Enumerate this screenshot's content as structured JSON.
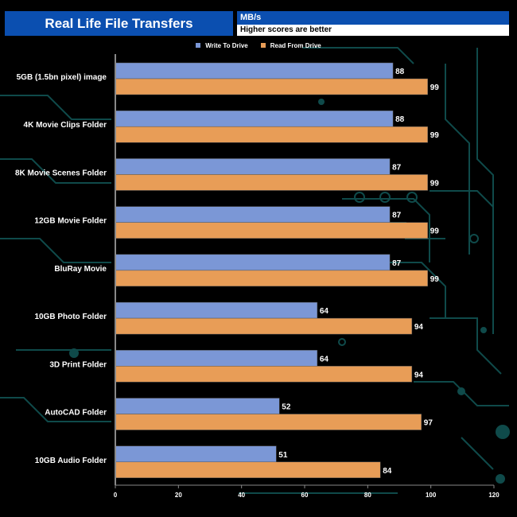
{
  "header": {
    "title": "Real Life File Transfers",
    "unit": "MB/s",
    "note": "Higher scores are better"
  },
  "colors": {
    "write": "#7b97d6",
    "read": "#e89d57",
    "title_bg": "#0b4fb0",
    "circuit": "#0f4a4a"
  },
  "chart_data": {
    "type": "bar",
    "orientation": "horizontal",
    "title": "Real Life File Transfers",
    "xlabel": "MB/s",
    "xlim": [
      0,
      120
    ],
    "xticks": [
      0,
      20,
      40,
      60,
      80,
      100,
      120
    ],
    "grid": false,
    "legend_position": "top-center",
    "categories": [
      "5GB (1.5bn pixel) image",
      "4K Movie Clips Folder",
      "8K Movie Scenes Folder",
      "12GB Movie Folder",
      "BluRay Movie",
      "10GB Photo Folder",
      "3D Print Folder",
      "AutoCAD Folder",
      "10GB Audio Folder"
    ],
    "series": [
      {
        "name": "Write To  Drive",
        "values": [
          88,
          88,
          87,
          87,
          87,
          64,
          64,
          52,
          51
        ]
      },
      {
        "name": "Read From  Drive",
        "values": [
          99,
          99,
          99,
          99,
          99,
          94,
          94,
          97,
          84
        ]
      }
    ]
  }
}
